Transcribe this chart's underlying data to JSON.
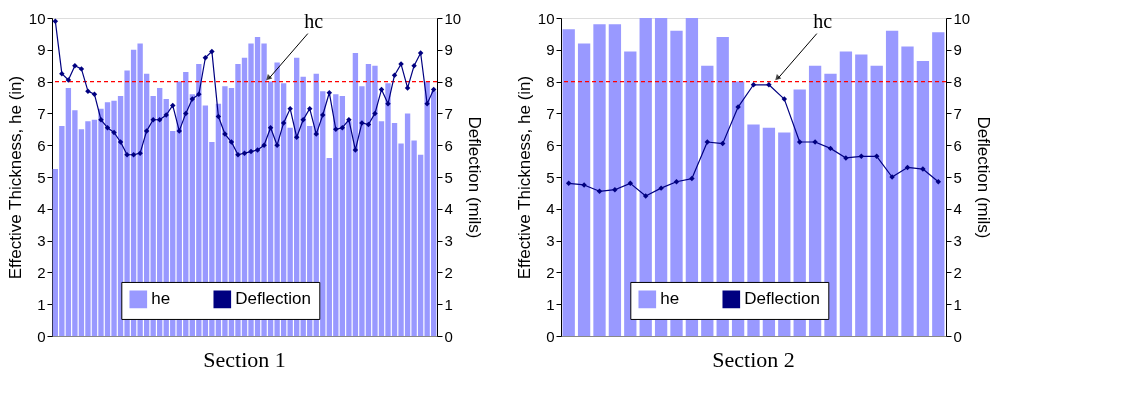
{
  "chart_data": [
    {
      "type": "bar",
      "title": "Section 1",
      "ylabel": "Effective Thickness, he (in)",
      "y2label": "Deflection (mils)",
      "categories": [
        null,
        null,
        null,
        null,
        null,
        null,
        null,
        null,
        null,
        null,
        null,
        null,
        null,
        null,
        null,
        null,
        null,
        null,
        null,
        null,
        null,
        null,
        null,
        null,
        null,
        null,
        null,
        null,
        null,
        null,
        null,
        null,
        null,
        null,
        null,
        null,
        null,
        null,
        null,
        null,
        null,
        null,
        null,
        null,
        null,
        null,
        null,
        null,
        null,
        null,
        null,
        null,
        null,
        null,
        null,
        null,
        null,
        null,
        null
      ],
      "series": [
        {
          "name": "he",
          "color": "#9999ff",
          "values": [
            5.25,
            6.6,
            7.8,
            7.1,
            6.5,
            6.75,
            6.8,
            7.15,
            7.35,
            7.4,
            7.55,
            8.35,
            9.0,
            9.2,
            8.25,
            7.55,
            7.8,
            7.45,
            6.45,
            8.0,
            8.3,
            7.6,
            8.55,
            7.25,
            6.1,
            7.3,
            7.85,
            7.8,
            8.55,
            8.75,
            9.2,
            9.4,
            9.2,
            8.0,
            8.6,
            7.95,
            6.55,
            8.75,
            8.15,
            6.6,
            8.25,
            7.7,
            5.6,
            7.6,
            7.55,
            6.75,
            8.9,
            7.85,
            8.55,
            8.5,
            6.75,
            7.95,
            6.7,
            6.05,
            7.0,
            6.15,
            5.7,
            8.0,
            7.7
          ]
        },
        {
          "name": "Deflection",
          "color": "#000080",
          "type": "line",
          "axis": "y2",
          "values": [
            9.9,
            8.25,
            8.05,
            8.5,
            8.4,
            7.7,
            7.6,
            6.8,
            6.55,
            6.4,
            6.1,
            5.7,
            5.7,
            5.75,
            6.45,
            6.8,
            6.8,
            6.95,
            7.25,
            6.45,
            7.0,
            7.45,
            7.6,
            8.75,
            8.95,
            6.9,
            6.35,
            6.1,
            5.7,
            5.75,
            5.8,
            5.85,
            6.0,
            6.55,
            6.0,
            6.7,
            7.15,
            6.25,
            6.8,
            7.15,
            6.35,
            6.95,
            7.65,
            6.5,
            6.55,
            6.8,
            5.85,
            6.7,
            6.65,
            7.0,
            7.75,
            7.3,
            8.2,
            8.55,
            7.8,
            8.5,
            8.9,
            7.3,
            7.75
          ]
        }
      ],
      "ylim": [
        0,
        10
      ],
      "yticks": [
        0,
        1,
        2,
        3,
        4,
        5,
        6,
        7,
        8,
        9,
        10
      ],
      "y2lim": [
        0,
        10
      ],
      "y2ticks": [
        0,
        1,
        2,
        3,
        4,
        5,
        6,
        7,
        8,
        9,
        10
      ],
      "ref_lines": [
        {
          "axis": "y",
          "value": 8,
          "label": "hc",
          "color": "#ff0000",
          "line_style": "dashed"
        }
      ],
      "legend": "bottom",
      "marker": "diamond",
      "line_style": "solid",
      "grid": false
    },
    {
      "type": "bar",
      "title": "Section 2",
      "ylabel": "Effective Thickness, he (in)",
      "y2label": "Deflection (mils)",
      "categories": [
        null,
        null,
        null,
        null,
        null,
        null,
        null,
        null,
        null,
        null,
        null,
        null,
        null,
        null,
        null,
        null,
        null,
        null,
        null,
        null,
        null,
        null,
        null,
        null,
        null
      ],
      "series": [
        {
          "name": "he",
          "color": "#9999ff",
          "values": [
            9.65,
            9.2,
            9.8,
            9.8,
            8.95,
            10,
            10,
            9.6,
            10,
            8.5,
            9.4,
            8.0,
            6.65,
            6.55,
            6.4,
            7.75,
            8.5,
            8.25,
            8.95,
            8.85,
            8.5,
            9.6,
            9.1,
            8.65,
            9.55
          ]
        },
        {
          "name": "Deflection",
          "color": "#000080",
          "type": "line",
          "axis": "y2",
          "values": [
            4.8,
            4.75,
            4.55,
            4.6,
            4.8,
            4.4,
            4.65,
            4.85,
            4.95,
            6.1,
            6.05,
            7.2,
            7.9,
            7.9,
            7.45,
            6.1,
            6.1,
            5.9,
            5.6,
            5.65,
            5.65,
            5.0,
            5.3,
            5.25,
            4.85
          ]
        }
      ],
      "ylim": [
        0,
        10
      ],
      "yticks": [
        0,
        1,
        2,
        3,
        4,
        5,
        6,
        7,
        8,
        9,
        10
      ],
      "y2lim": [
        0,
        10
      ],
      "y2ticks": [
        0,
        1,
        2,
        3,
        4,
        5,
        6,
        7,
        8,
        9,
        10
      ],
      "ref_lines": [
        {
          "axis": "y",
          "value": 8,
          "label": "hc",
          "color": "#ff0000",
          "line_style": "dashed"
        }
      ],
      "legend": "bottom",
      "marker": "diamond",
      "line_style": "solid",
      "grid": false
    }
  ]
}
